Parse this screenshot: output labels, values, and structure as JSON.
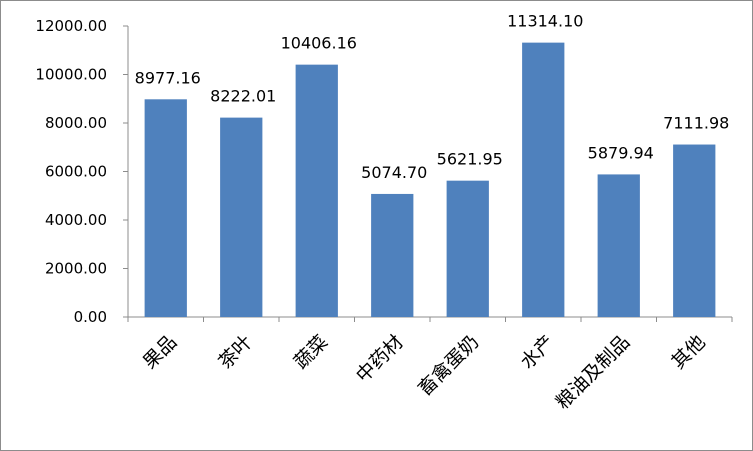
{
  "chart_data": {
    "type": "bar",
    "title": "",
    "xlabel": "",
    "ylabel": "",
    "categories": [
      "果品",
      "茶叶",
      "蔬菜",
      "中药材",
      "畜禽蛋奶",
      "水产",
      "粮油及制品",
      "其他"
    ],
    "values": [
      8977.16,
      8222.01,
      10406.16,
      5074.7,
      5621.95,
      11314.1,
      5879.94,
      7111.98
    ],
    "value_labels": [
      "8977.16",
      "8222.01",
      "10406.16",
      "5074.70",
      "5621.95",
      "11314.10",
      "5879.94",
      "7111.98"
    ],
    "ylim": [
      0,
      12000
    ],
    "yticks": [
      0,
      2000,
      4000,
      6000,
      8000,
      10000,
      12000
    ],
    "ytick_labels": [
      "0.00",
      "2000.00",
      "4000.00",
      "6000.00",
      "8000.00",
      "10000.00",
      "12000.00"
    ],
    "grid": false,
    "legend": "none",
    "bar_color": "#4f81bd",
    "axis_color": "#8c8c8c"
  }
}
